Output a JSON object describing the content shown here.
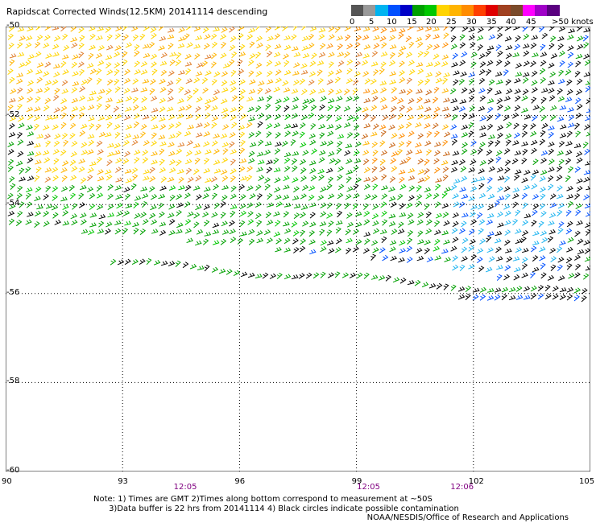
{
  "title": "Rapidscat Corrected Winds(12.5KM) 20141114 descending",
  "legend": {
    "colors": [
      "#555555",
      "#999999",
      "#00b4f0",
      "#0050ff",
      "#0000c8",
      "#00a000",
      "#00c800",
      "#ffd400",
      "#ffb400",
      "#ff8c00",
      "#ff4000",
      "#e00000",
      "#a04020",
      "#7a4a2a",
      "#ff00ff",
      "#a000c8",
      "#5a0080"
    ],
    "labels": [
      "0",
      "5",
      "10",
      "15",
      "20",
      "25",
      "30",
      "35",
      "40",
      "45",
      ">50 knots"
    ]
  },
  "map": {
    "lon_range": [
      90,
      105
    ],
    "lat_range": [
      -60,
      -50
    ],
    "lon_ticks": [
      "90",
      "93",
      "96",
      "99",
      "102",
      "105"
    ],
    "lat_ticks": [
      "-50",
      "-52",
      "-54",
      "-56",
      "-58",
      "-60"
    ],
    "time_labels": [
      {
        "text": "12:05",
        "lon": 94.6
      },
      {
        "text": "12:05",
        "lon": 99.3
      },
      {
        "text": "12:06",
        "lon": 101.7
      }
    ],
    "grid": "dotted",
    "symbols": "wind barbs"
  },
  "notes": {
    "line1": "Note: 1) Times are GMT 2)Times along bottom correspond to measurement at ~50S",
    "line2": "      3)Data buffer is 22 hrs from 20141114 4) Black circles indicate possible contamination"
  },
  "credit": "NOAA/NESDIS/Office of Research and Applications"
}
